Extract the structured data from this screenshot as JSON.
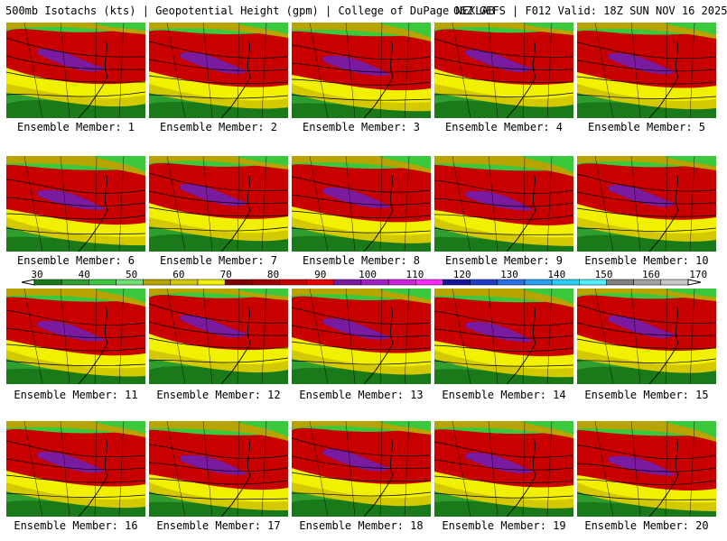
{
  "header": {
    "left_title": "500mb Isotachs (kts) | Geopotential Height (gpm) | College of DuPage NEXLAB",
    "right_title": "06Z GEFS | F012 Valid: 18Z SUN NOV 16 2025"
  },
  "members": [
    {
      "label": "Ensemble Member: 1"
    },
    {
      "label": "Ensemble Member: 2"
    },
    {
      "label": "Ensemble Member: 3"
    },
    {
      "label": "Ensemble Member: 4"
    },
    {
      "label": "Ensemble Member: 5"
    },
    {
      "label": "Ensemble Member: 6"
    },
    {
      "label": "Ensemble Member: 7"
    },
    {
      "label": "Ensemble Member: 8"
    },
    {
      "label": "Ensemble Member: 9"
    },
    {
      "label": "Ensemble Member: 10"
    },
    {
      "label": "Ensemble Member: 11"
    },
    {
      "label": "Ensemble Member: 12"
    },
    {
      "label": "Ensemble Member: 13"
    },
    {
      "label": "Ensemble Member: 14"
    },
    {
      "label": "Ensemble Member: 15"
    },
    {
      "label": "Ensemble Member: 16"
    },
    {
      "label": "Ensemble Member: 17"
    },
    {
      "label": "Ensemble Member: 18"
    },
    {
      "label": "Ensemble Member: 19"
    },
    {
      "label": "Ensemble Member: 20"
    }
  ],
  "legend": {
    "unit": "kts",
    "ticks": [
      "30",
      "40",
      "50",
      "60",
      "70",
      "80",
      "90",
      "100",
      "110",
      "120",
      "130",
      "140",
      "150",
      "160",
      "170"
    ],
    "colors": [
      "#1a7a1a",
      "#2e9e2e",
      "#3cc83c",
      "#70e070",
      "#b8a400",
      "#d4c800",
      "#f0f000",
      "#800000",
      "#a00000",
      "#c80000",
      "#e80000",
      "#7a1a9e",
      "#a020c8",
      "#d020e0",
      "#ff28ff",
      "#1414a0",
      "#1e3cc8",
      "#2870e8",
      "#28a0f0",
      "#28d0f8",
      "#50f0ff",
      "#808080",
      "#a0a0a0",
      "#c8c8c8"
    ]
  }
}
